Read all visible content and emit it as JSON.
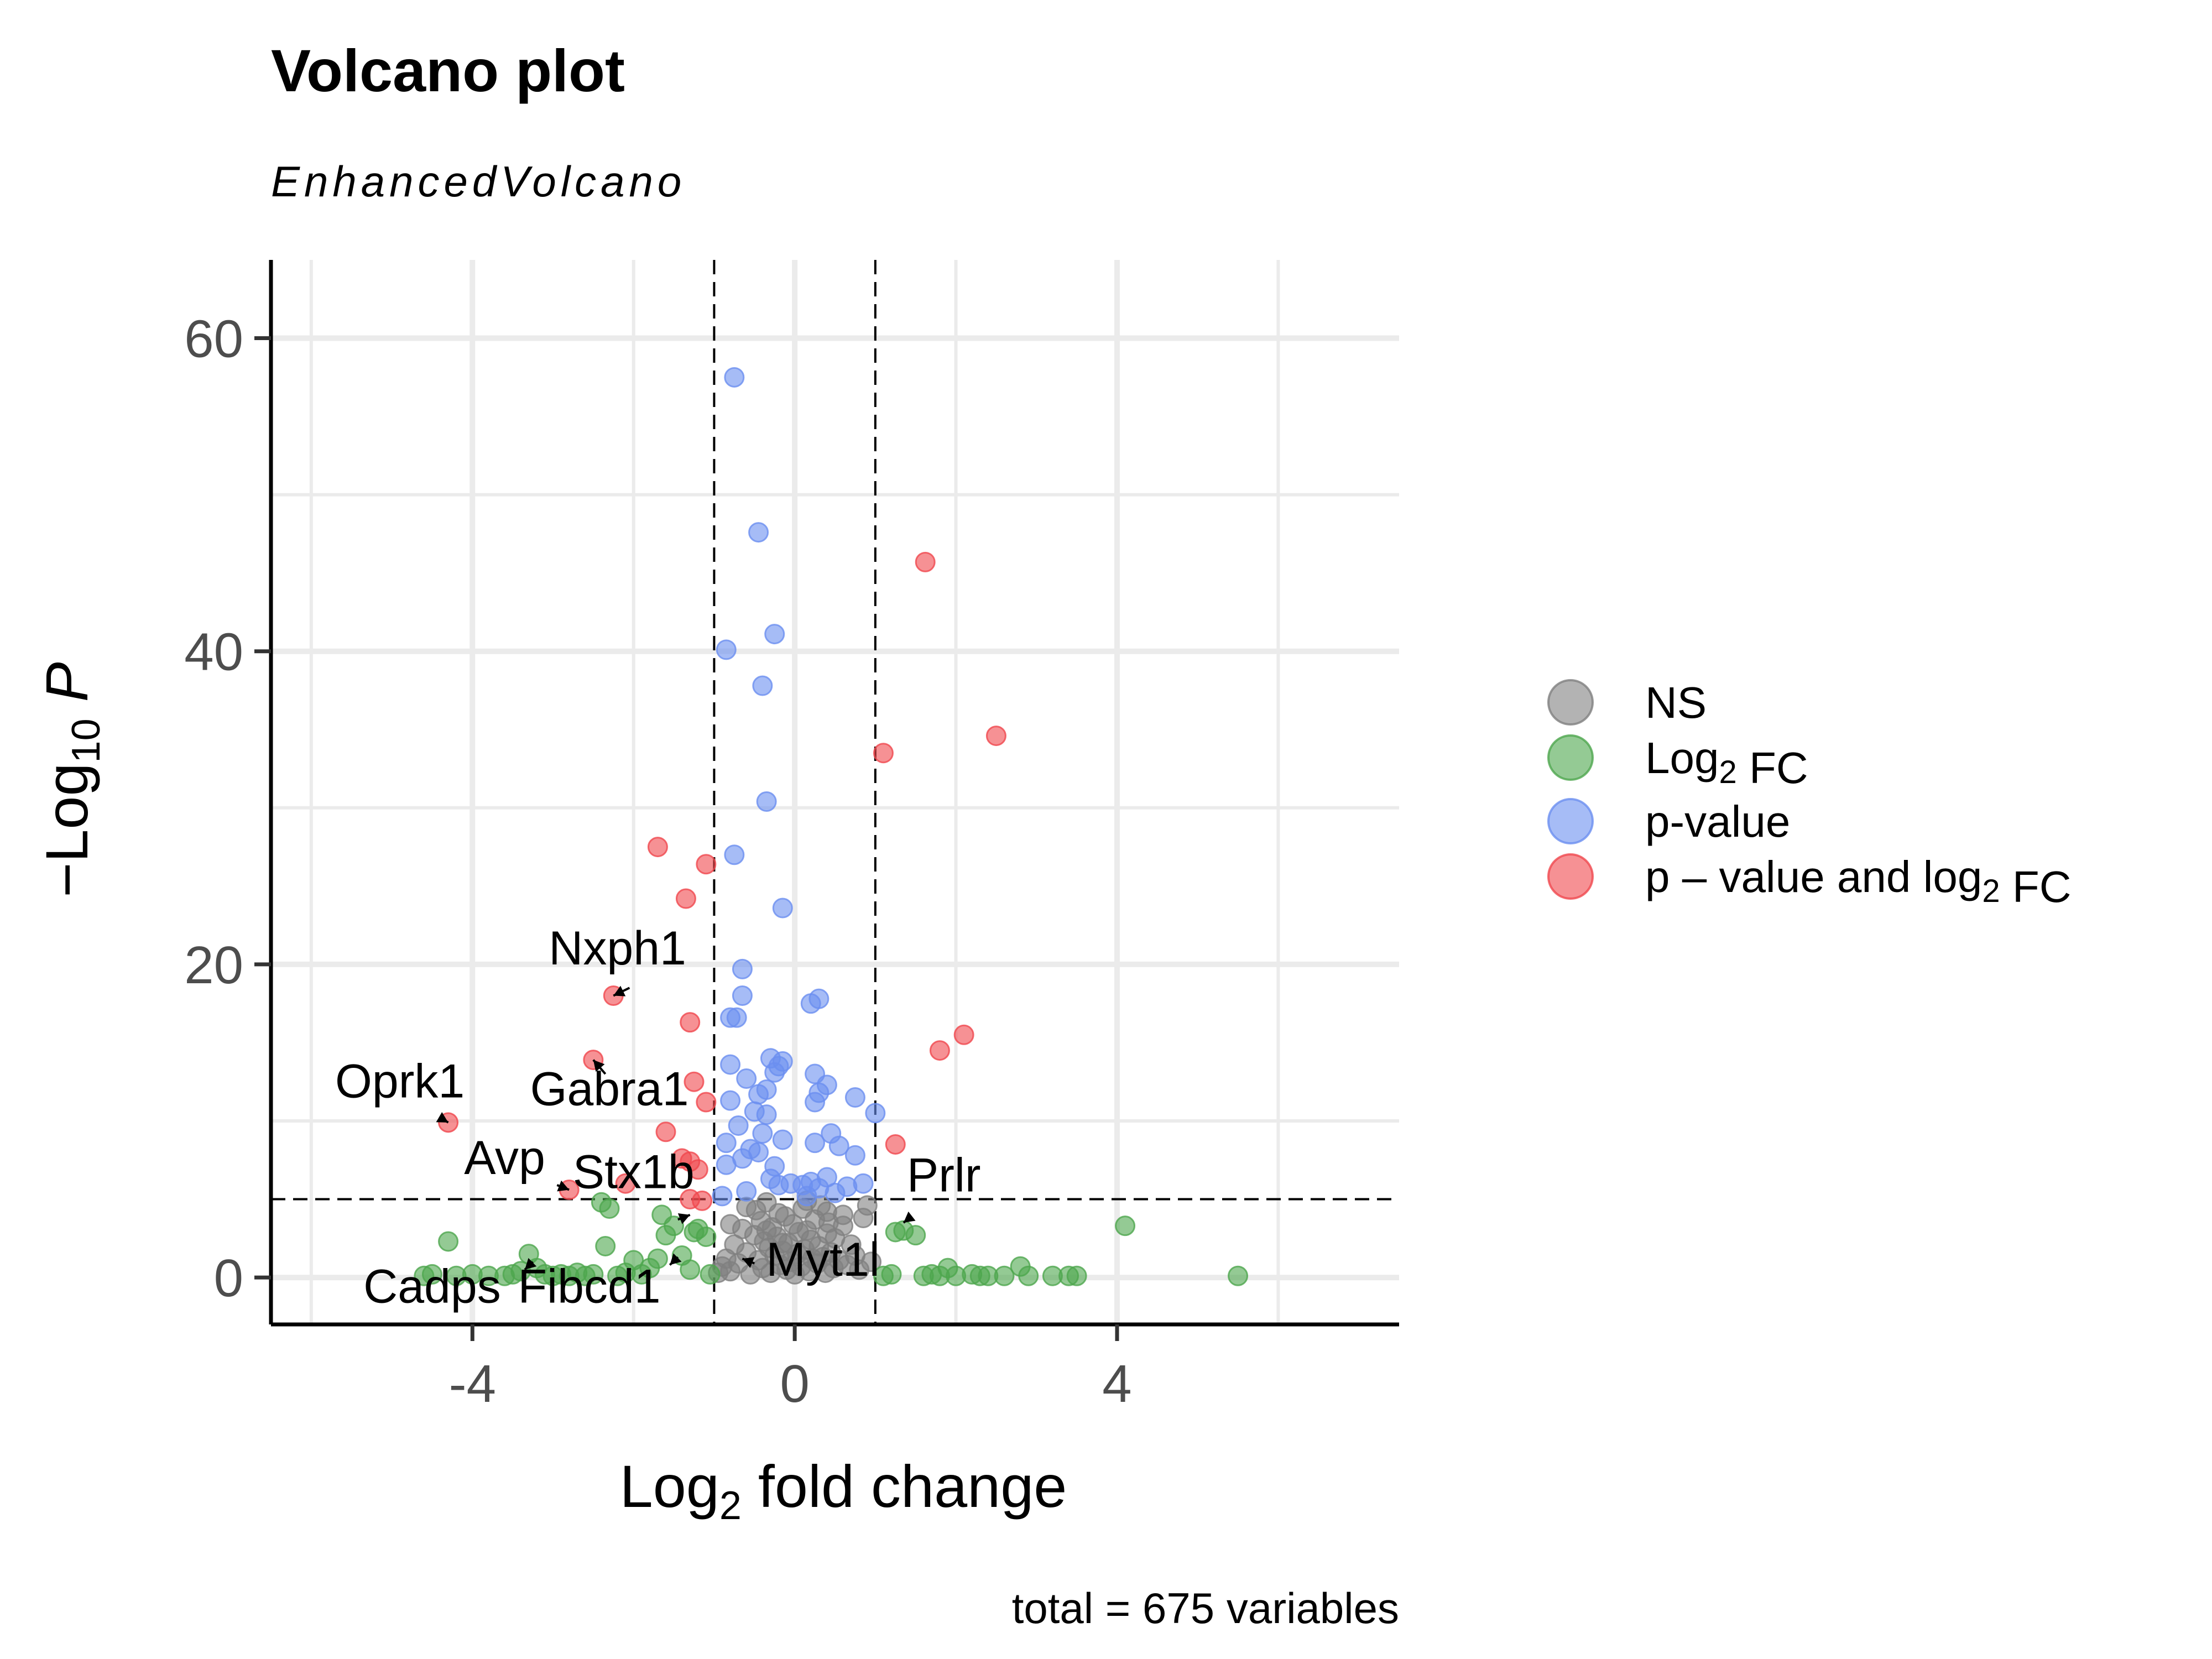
{
  "chart_data": {
    "type": "scatter",
    "title": "Volcano plot",
    "subtitle": "EnhancedVolcano",
    "xlabel": {
      "main": "Log",
      "sub": "2",
      "rest": " fold change"
    },
    "ylabel": {
      "pre": "−Log",
      "sub": "10",
      "rest": " P"
    },
    "caption": "total = 675 variables",
    "xlim": [
      -6.5,
      7.5
    ],
    "ylim": [
      -3,
      65
    ],
    "x_ticks": [
      -4,
      0,
      4
    ],
    "x_tick_labels": [
      "-4",
      "0",
      "4"
    ],
    "y_ticks": [
      0,
      20,
      40,
      60
    ],
    "y_tick_labels": [
      "0",
      "20",
      "40",
      "60"
    ],
    "grid": true,
    "fc_cutoff": 1,
    "p_cutoff_neglog10": 5,
    "legend_position": "right",
    "legend": [
      {
        "key": "NS",
        "color": "#808080",
        "parts": [
          {
            "t": "NS"
          }
        ]
      },
      {
        "key": "FC",
        "color": "#4da64d",
        "parts": [
          {
            "t": "Log"
          },
          {
            "t": "2",
            "sub": true
          },
          {
            "t": " FC"
          }
        ]
      },
      {
        "key": "P",
        "color": "#6b8ff0",
        "parts": [
          {
            "t": "p-value"
          }
        ]
      },
      {
        "key": "FC_P",
        "color": "#f0474d",
        "parts": [
          {
            "t": "p – value and log"
          },
          {
            "t": "2",
            "sub": true
          },
          {
            "t": " FC"
          }
        ]
      }
    ],
    "colors": {
      "NS": "#808080",
      "FC": "#4da64d",
      "P": "#6b8ff0",
      "FC_P": "#f0474d"
    },
    "series": [
      {
        "key": "NS",
        "points": [
          [
            -0.95,
            0.3
          ],
          [
            -0.9,
            0.7
          ],
          [
            -0.85,
            1.2
          ],
          [
            -0.8,
            0.4
          ],
          [
            -0.75,
            2.1
          ],
          [
            -0.7,
            0.9
          ],
          [
            -0.65,
            3.1
          ],
          [
            -0.6,
            1.6
          ],
          [
            -0.55,
            0.2
          ],
          [
            -0.5,
            2.7
          ],
          [
            -0.48,
            4.3
          ],
          [
            -0.45,
            1.1
          ],
          [
            -0.42,
            3.6
          ],
          [
            -0.4,
            0.6
          ],
          [
            -0.38,
            2.3
          ],
          [
            -0.35,
            4.8
          ],
          [
            -0.32,
            1.9
          ],
          [
            -0.3,
            0.3
          ],
          [
            -0.28,
            3.2
          ],
          [
            -0.25,
            1.4
          ],
          [
            -0.22,
            2.6
          ],
          [
            -0.2,
            4.1
          ],
          [
            -0.18,
            0.8
          ],
          [
            -0.15,
            1.7
          ],
          [
            -0.12,
            3.9
          ],
          [
            -0.1,
            0.5
          ],
          [
            -0.08,
            2.2
          ],
          [
            -0.05,
            1.0
          ],
          [
            -0.02,
            3.4
          ],
          [
            0.0,
            0.2
          ],
          [
            0.03,
            1.5
          ],
          [
            0.05,
            2.9
          ],
          [
            0.08,
            0.7
          ],
          [
            0.1,
            4.4
          ],
          [
            0.12,
            1.8
          ],
          [
            0.15,
            3.0
          ],
          [
            0.18,
            0.4
          ],
          [
            0.2,
            2.4
          ],
          [
            0.22,
            1.2
          ],
          [
            0.25,
            3.7
          ],
          [
            0.28,
            0.9
          ],
          [
            0.3,
            2.0
          ],
          [
            0.32,
            4.6
          ],
          [
            0.35,
            1.3
          ],
          [
            0.38,
            0.3
          ],
          [
            0.4,
            2.8
          ],
          [
            0.42,
            3.5
          ],
          [
            0.45,
            1.6
          ],
          [
            0.48,
            0.6
          ],
          [
            0.5,
            2.5
          ],
          [
            0.55,
            1.1
          ],
          [
            0.6,
            3.3
          ],
          [
            0.65,
            0.8
          ],
          [
            0.7,
            2.1
          ],
          [
            0.75,
            1.4
          ],
          [
            0.8,
            0.5
          ],
          [
            0.85,
            3.8
          ],
          [
            0.9,
            4.6
          ],
          [
            0.95,
            1.0
          ],
          [
            -0.6,
            4.5
          ],
          [
            -0.35,
            3.0
          ],
          [
            -0.15,
            2.2
          ],
          [
            0.15,
            4.9
          ],
          [
            0.4,
            4.2
          ],
          [
            -0.8,
            3.4
          ],
          [
            0.6,
            4.0
          ]
        ]
      },
      {
        "key": "FC",
        "points": [
          [
            -4.6,
            0.1
          ],
          [
            -4.5,
            0.2
          ],
          [
            -4.3,
            2.3
          ],
          [
            -4.2,
            0.1
          ],
          [
            -4.0,
            0.2
          ],
          [
            -3.8,
            0.1
          ],
          [
            -3.6,
            0.1
          ],
          [
            -3.5,
            0.2
          ],
          [
            -3.4,
            0.4
          ],
          [
            -3.3,
            1.5
          ],
          [
            -3.2,
            0.6
          ],
          [
            -3.1,
            0.2
          ],
          [
            -3.0,
            0.1
          ],
          [
            -2.9,
            0.2
          ],
          [
            -2.8,
            0.1
          ],
          [
            -2.7,
            0.3
          ],
          [
            -2.6,
            0.1
          ],
          [
            -2.5,
            0.2
          ],
          [
            -2.4,
            4.8
          ],
          [
            -2.35,
            2.0
          ],
          [
            -2.3,
            4.4
          ],
          [
            -2.2,
            0.1
          ],
          [
            -2.1,
            0.3
          ],
          [
            -2.0,
            1.1
          ],
          [
            -1.9,
            0.2
          ],
          [
            -1.8,
            0.6
          ],
          [
            -1.7,
            1.2
          ],
          [
            -1.65,
            4.0
          ],
          [
            -1.6,
            2.7
          ],
          [
            -1.5,
            3.3
          ],
          [
            -1.4,
            1.4
          ],
          [
            -1.3,
            0.5
          ],
          [
            -1.25,
            2.9
          ],
          [
            -1.2,
            3.1
          ],
          [
            -1.1,
            2.6
          ],
          [
            -1.05,
            0.2
          ],
          [
            1.1,
            0.1
          ],
          [
            1.2,
            0.2
          ],
          [
            1.25,
            2.9
          ],
          [
            1.35,
            3.0
          ],
          [
            1.5,
            2.7
          ],
          [
            1.6,
            0.1
          ],
          [
            1.7,
            0.2
          ],
          [
            1.8,
            0.1
          ],
          [
            1.9,
            0.6
          ],
          [
            2.0,
            0.1
          ],
          [
            2.2,
            0.2
          ],
          [
            2.3,
            0.1
          ],
          [
            2.4,
            0.1
          ],
          [
            2.6,
            0.1
          ],
          [
            2.8,
            0.7
          ],
          [
            2.9,
            0.1
          ],
          [
            3.2,
            0.1
          ],
          [
            3.4,
            0.1
          ],
          [
            3.5,
            0.1
          ],
          [
            4.1,
            3.3
          ],
          [
            5.5,
            0.1
          ]
        ]
      },
      {
        "key": "P",
        "points": [
          [
            -0.75,
            57.5
          ],
          [
            -0.45,
            47.6
          ],
          [
            -0.25,
            41.1
          ],
          [
            -0.85,
            40.1
          ],
          [
            -0.4,
            37.8
          ],
          [
            -0.35,
            30.4
          ],
          [
            -0.75,
            27.0
          ],
          [
            -0.15,
            23.6
          ],
          [
            -0.65,
            19.7
          ],
          [
            0.3,
            17.8
          ],
          [
            -0.65,
            18.0
          ],
          [
            0.2,
            17.5
          ],
          [
            -0.8,
            16.6
          ],
          [
            -0.72,
            16.6
          ],
          [
            -0.3,
            14.0
          ],
          [
            -0.2,
            13.5
          ],
          [
            -0.15,
            13.8
          ],
          [
            -0.25,
            13.1
          ],
          [
            -0.8,
            13.6
          ],
          [
            -0.6,
            12.7
          ],
          [
            0.25,
            13.0
          ],
          [
            0.4,
            12.3
          ],
          [
            -0.35,
            12.0
          ],
          [
            -0.45,
            11.7
          ],
          [
            0.3,
            11.8
          ],
          [
            0.25,
            11.2
          ],
          [
            0.75,
            11.5
          ],
          [
            -0.8,
            11.3
          ],
          [
            1.0,
            10.5
          ],
          [
            -0.5,
            10.6
          ],
          [
            -0.35,
            10.4
          ],
          [
            -0.7,
            9.7
          ],
          [
            -0.4,
            9.2
          ],
          [
            0.45,
            9.2
          ],
          [
            -0.15,
            8.8
          ],
          [
            0.25,
            8.6
          ],
          [
            0.55,
            8.4
          ],
          [
            0.75,
            7.8
          ],
          [
            -0.85,
            8.6
          ],
          [
            -0.55,
            8.2
          ],
          [
            -0.45,
            8.0
          ],
          [
            -0.25,
            7.1
          ],
          [
            -0.65,
            7.6
          ],
          [
            -0.85,
            7.2
          ],
          [
            -0.3,
            6.3
          ],
          [
            0.1,
            5.9
          ],
          [
            0.2,
            6.1
          ],
          [
            0.3,
            5.7
          ],
          [
            0.4,
            6.4
          ],
          [
            0.5,
            5.4
          ],
          [
            0.65,
            5.8
          ],
          [
            -0.6,
            5.5
          ],
          [
            -0.2,
            5.9
          ],
          [
            0.15,
            5.2
          ],
          [
            0.85,
            6.0
          ],
          [
            -0.9,
            5.2
          ],
          [
            -0.05,
            6.0
          ]
        ]
      },
      {
        "key": "FC_P",
        "points": [
          [
            1.62,
            45.7
          ],
          [
            2.5,
            34.6
          ],
          [
            1.1,
            33.5
          ],
          [
            -1.7,
            27.5
          ],
          [
            -1.1,
            26.4
          ],
          [
            -1.35,
            24.2
          ],
          [
            -2.25,
            18.0
          ],
          [
            2.1,
            15.5
          ],
          [
            -1.3,
            16.3
          ],
          [
            1.8,
            14.5
          ],
          [
            -2.5,
            13.9
          ],
          [
            -1.25,
            12.5
          ],
          [
            -1.1,
            11.2
          ],
          [
            -4.3,
            9.9
          ],
          [
            1.25,
            8.5
          ],
          [
            -1.6,
            9.3
          ],
          [
            -1.4,
            7.6
          ],
          [
            -1.3,
            7.4
          ],
          [
            -1.2,
            6.9
          ],
          [
            -2.1,
            6.0
          ],
          [
            -2.8,
            5.6
          ],
          [
            -1.3,
            5.0
          ],
          [
            -1.15,
            4.9
          ]
        ]
      }
    ],
    "annotations": [
      {
        "label": "Nxph1",
        "x": -2.25,
        "y": 18.0,
        "tx": -2.2,
        "ty": 20.0,
        "ax": -2.05,
        "ay": 18.5
      },
      {
        "label": "Gabra1",
        "x": -2.5,
        "y": 13.9,
        "tx": -2.3,
        "ty": 11.0,
        "ax": -2.35,
        "ay": 13.0
      },
      {
        "label": "Oprk1",
        "x": -4.3,
        "y": 9.9,
        "tx": -4.9,
        "ty": 11.5,
        "ax": -4.4,
        "ay": 10.2
      },
      {
        "label": "Avp",
        "x": -2.8,
        "y": 5.6,
        "tx": -3.6,
        "ty": 6.6,
        "ax": -2.95,
        "ay": 5.9
      },
      {
        "label": "Stx1b",
        "x": -1.3,
        "y": 4.0,
        "tx": -2.0,
        "ty": 5.7,
        "ax": -1.45,
        "ay": 3.7
      },
      {
        "label": "Prlr",
        "x": 1.35,
        "y": 3.5,
        "tx": 1.85,
        "ty": 5.5,
        "ax": 1.45,
        "ay": 3.9
      },
      {
        "label": "Cadps",
        "x": -3.35,
        "y": 0.5,
        "tx": -4.5,
        "ty": -1.6,
        "ax": -3.25,
        "ay": 1.0
      },
      {
        "label": "Fibcd1",
        "x": -1.55,
        "y": 0.8,
        "tx": -2.55,
        "ty": -1.6,
        "ax": -1.45,
        "ay": 1.3
      },
      {
        "label": "Myt1l",
        "x": -0.65,
        "y": 1.2,
        "tx": 0.35,
        "ty": 0.1,
        "ax": -0.5,
        "ay": 0.9
      }
    ]
  }
}
